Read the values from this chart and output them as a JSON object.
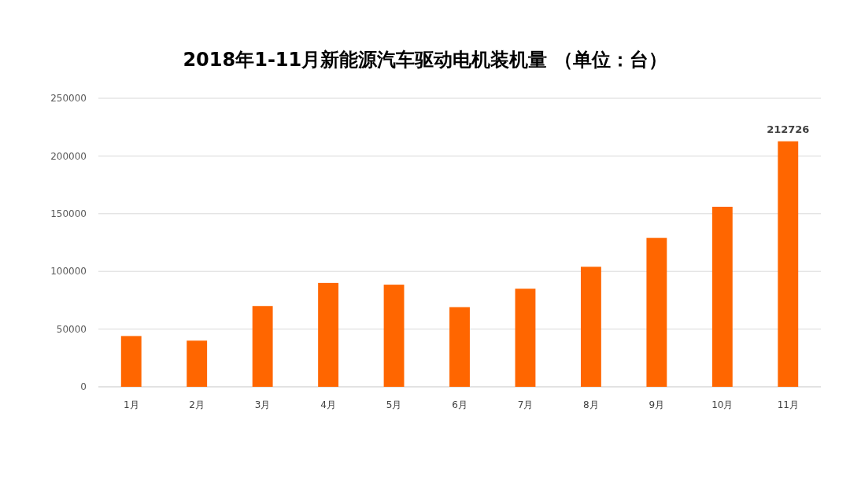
{
  "chart_data": {
    "type": "bar",
    "title": "2018年1-11月新能源汽车驱动电机装机量 （单位：台）",
    "categories": [
      "1月",
      "2月",
      "3月",
      "4月",
      "5月",
      "6月",
      "7月",
      "8月",
      "9月",
      "10月",
      "11月"
    ],
    "values": [
      44000,
      40000,
      70000,
      90000,
      88500,
      69000,
      85000,
      104000,
      129000,
      156000,
      212726
    ],
    "value_labels": [
      null,
      null,
      null,
      null,
      null,
      null,
      null,
      null,
      null,
      null,
      "212726"
    ],
    "color": "#ff6600",
    "ylim": [
      0,
      250000
    ],
    "yticks": [
      0,
      50000,
      100000,
      150000,
      200000,
      250000
    ],
    "grid": "y"
  }
}
